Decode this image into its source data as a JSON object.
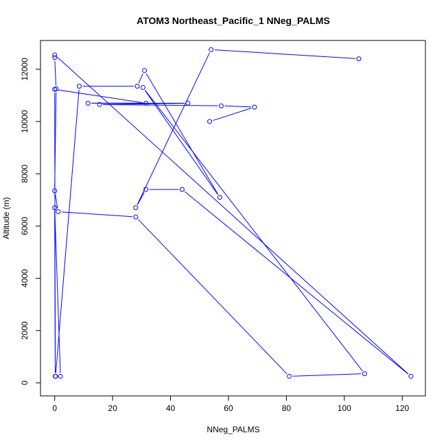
{
  "chart_data": {
    "type": "line",
    "title": "ATOM3 Northeast_Pacific_1 NNeg_PALMS",
    "xlabel": "NNeg_PALMS",
    "ylabel": "Altitude (m)",
    "xlim": [
      -4.9,
      128.0
    ],
    "ylim": [
      -500,
      13100
    ],
    "xticks": [
      0,
      20,
      40,
      60,
      80,
      100,
      120
    ],
    "yticks": [
      0,
      2000,
      4000,
      6000,
      8000,
      10000,
      12000
    ],
    "grid": false,
    "series": [
      {
        "color": "#0000ff",
        "markers": "open-circle",
        "x": [
          105,
          54,
          28,
          31.5,
          44,
          123,
          0,
          0,
          0.5,
          0,
          1.2,
          28,
          81,
          107,
          30.5,
          57,
          31,
          28.5,
          8.5,
          0.3,
          2,
          0,
          0.2,
          0,
          31.5,
          11.5,
          46,
          15.5,
          57.5,
          69,
          53.5
        ],
        "y": [
          12400,
          12750,
          6700,
          7400,
          7400,
          250,
          12550,
          12450,
          11250,
          7350,
          6550,
          6350,
          250,
          350,
          11300,
          7100,
          11950,
          11350,
          11350,
          250,
          250,
          6700,
          250,
          11230,
          10700,
          10700,
          10700,
          10650,
          10600,
          10550,
          10000
        ]
      }
    ]
  }
}
